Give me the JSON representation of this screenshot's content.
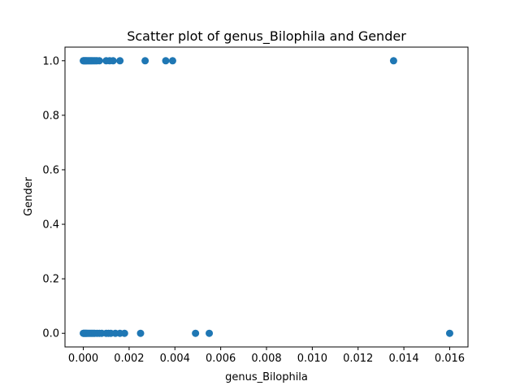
{
  "chart_data": {
    "type": "scatter",
    "title": "Scatter plot of genus_Bilophila and Gender",
    "xlabel": "genus_Bilophila",
    "ylabel": "Gender",
    "xlim": [
      -0.0008,
      0.0168
    ],
    "ylim": [
      -0.05,
      1.05
    ],
    "xticks": [
      0.0,
      0.002,
      0.004,
      0.006,
      0.008,
      0.01,
      0.012,
      0.014,
      0.016
    ],
    "xtick_labels": [
      "0.000",
      "0.002",
      "0.004",
      "0.006",
      "0.008",
      "0.010",
      "0.012",
      "0.014",
      "0.016"
    ],
    "yticks": [
      0.0,
      0.2,
      0.4,
      0.6,
      0.8,
      1.0
    ],
    "ytick_labels": [
      "0.0",
      "0.2",
      "0.4",
      "0.6",
      "0.8",
      "1.0"
    ],
    "grid": false,
    "marker_color": "#1f77b4",
    "series": [
      {
        "x": [
          0.0,
          2e-05,
          5e-05,
          8e-05,
          0.0001,
          0.00013,
          0.00016,
          0.0002,
          0.00024,
          0.00028,
          0.00032,
          0.00036,
          0.0004,
          0.00045,
          0.0005,
          0.00055,
          0.0006,
          0.0007,
          0.001,
          0.00115,
          0.0013,
          0.0016,
          0.0027,
          0.0036,
          0.0039,
          0.01355
        ],
        "y": [
          1,
          1,
          1,
          1,
          1,
          1,
          1,
          1,
          1,
          1,
          1,
          1,
          1,
          1,
          1,
          1,
          1,
          1,
          1,
          1,
          1,
          1,
          1,
          1,
          1,
          1
        ]
      },
      {
        "x": [
          0.0,
          2e-05,
          5e-05,
          8e-05,
          0.0001,
          0.00013,
          0.00016,
          0.0002,
          0.00025,
          0.0003,
          0.00035,
          0.0004,
          0.00045,
          0.0005,
          0.0006,
          0.0007,
          0.0008,
          0.001,
          0.0011,
          0.0012,
          0.0014,
          0.0016,
          0.0018,
          0.0025,
          0.0049,
          0.0055,
          0.016
        ],
        "y": [
          0,
          0,
          0,
          0,
          0,
          0,
          0,
          0,
          0,
          0,
          0,
          0,
          0,
          0,
          0,
          0,
          0,
          0,
          0,
          0,
          0,
          0,
          0,
          0,
          0,
          0,
          0
        ]
      }
    ]
  }
}
